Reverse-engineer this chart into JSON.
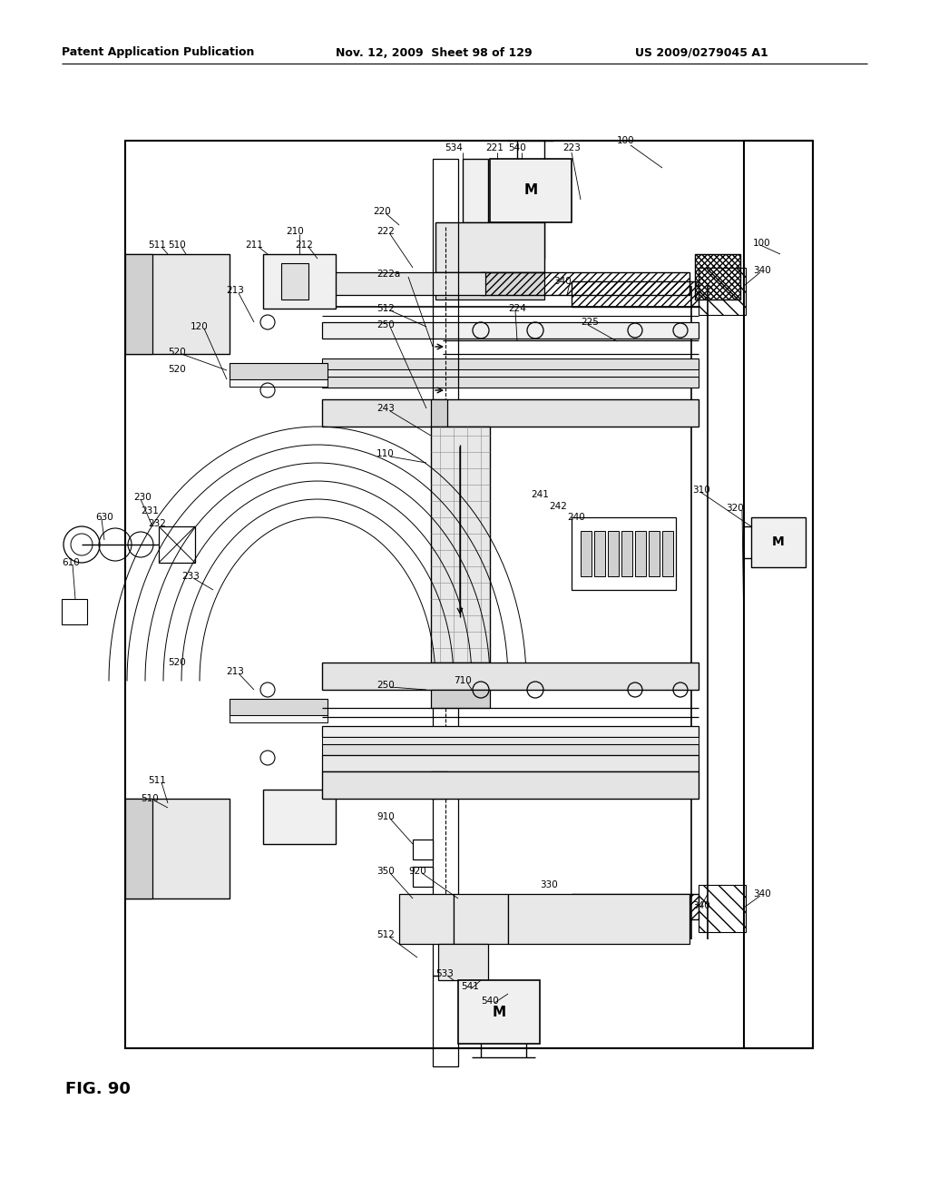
{
  "background_color": "#ffffff",
  "black": "#000000",
  "header_left": "Patent Application Publication",
  "header_mid": "Nov. 12, 2009  Sheet 98 of 129",
  "header_right": "US 2009/0279045 A1",
  "fig_label": "FIG. 90",
  "lw_main": 1.2,
  "lw_med": 0.9,
  "lw_thin": 0.7,
  "label_fs": 7.5
}
